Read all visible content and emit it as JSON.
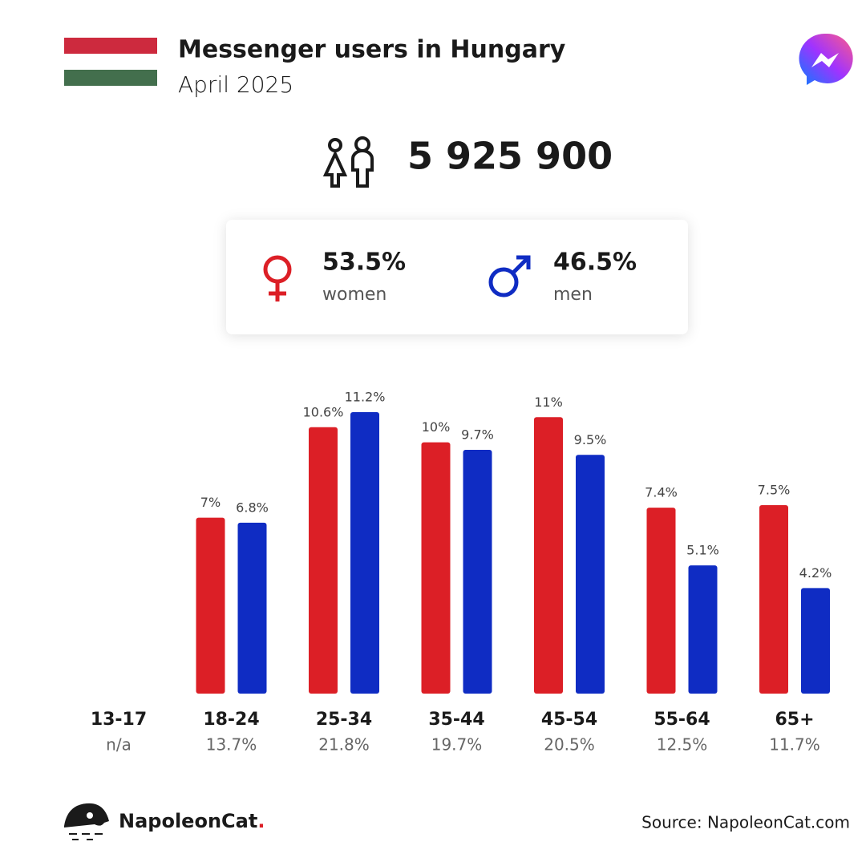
{
  "header": {
    "title": "Messenger users in Hungary",
    "subtitle": "April 2025",
    "total_users": "5 925 900"
  },
  "gender": {
    "women": {
      "share": "53.5%",
      "label": "women"
    },
    "men": {
      "share": "46.5%",
      "label": "men"
    }
  },
  "chart_data": {
    "type": "bar",
    "categories": [
      "13-17",
      "18-24",
      "25-34",
      "35-44",
      "45-54",
      "55-64",
      "65+"
    ],
    "category_totals": [
      "n/a",
      "13.7%",
      "21.8%",
      "19.7%",
      "20.5%",
      "12.5%",
      "11.7%"
    ],
    "series": [
      {
        "name": "women",
        "color": "#dc1f26",
        "values": [
          null,
          7,
          10.6,
          10,
          11,
          7.4,
          7.5
        ],
        "value_labels": [
          null,
          "7%",
          "10.6%",
          "10%",
          "11%",
          "7.4%",
          "7.5%"
        ]
      },
      {
        "name": "men",
        "color": "#0f2cc3",
        "values": [
          null,
          6.8,
          11.2,
          9.7,
          9.5,
          5.1,
          4.2
        ],
        "value_labels": [
          null,
          "6.8%",
          "11.2%",
          "9.7%",
          "9.5%",
          "5.1%",
          "4.2%"
        ]
      }
    ]
  },
  "footer": {
    "brand": [
      "NapoleonCat",
      "."
    ],
    "source": "Source: NapoleonCat.com"
  }
}
